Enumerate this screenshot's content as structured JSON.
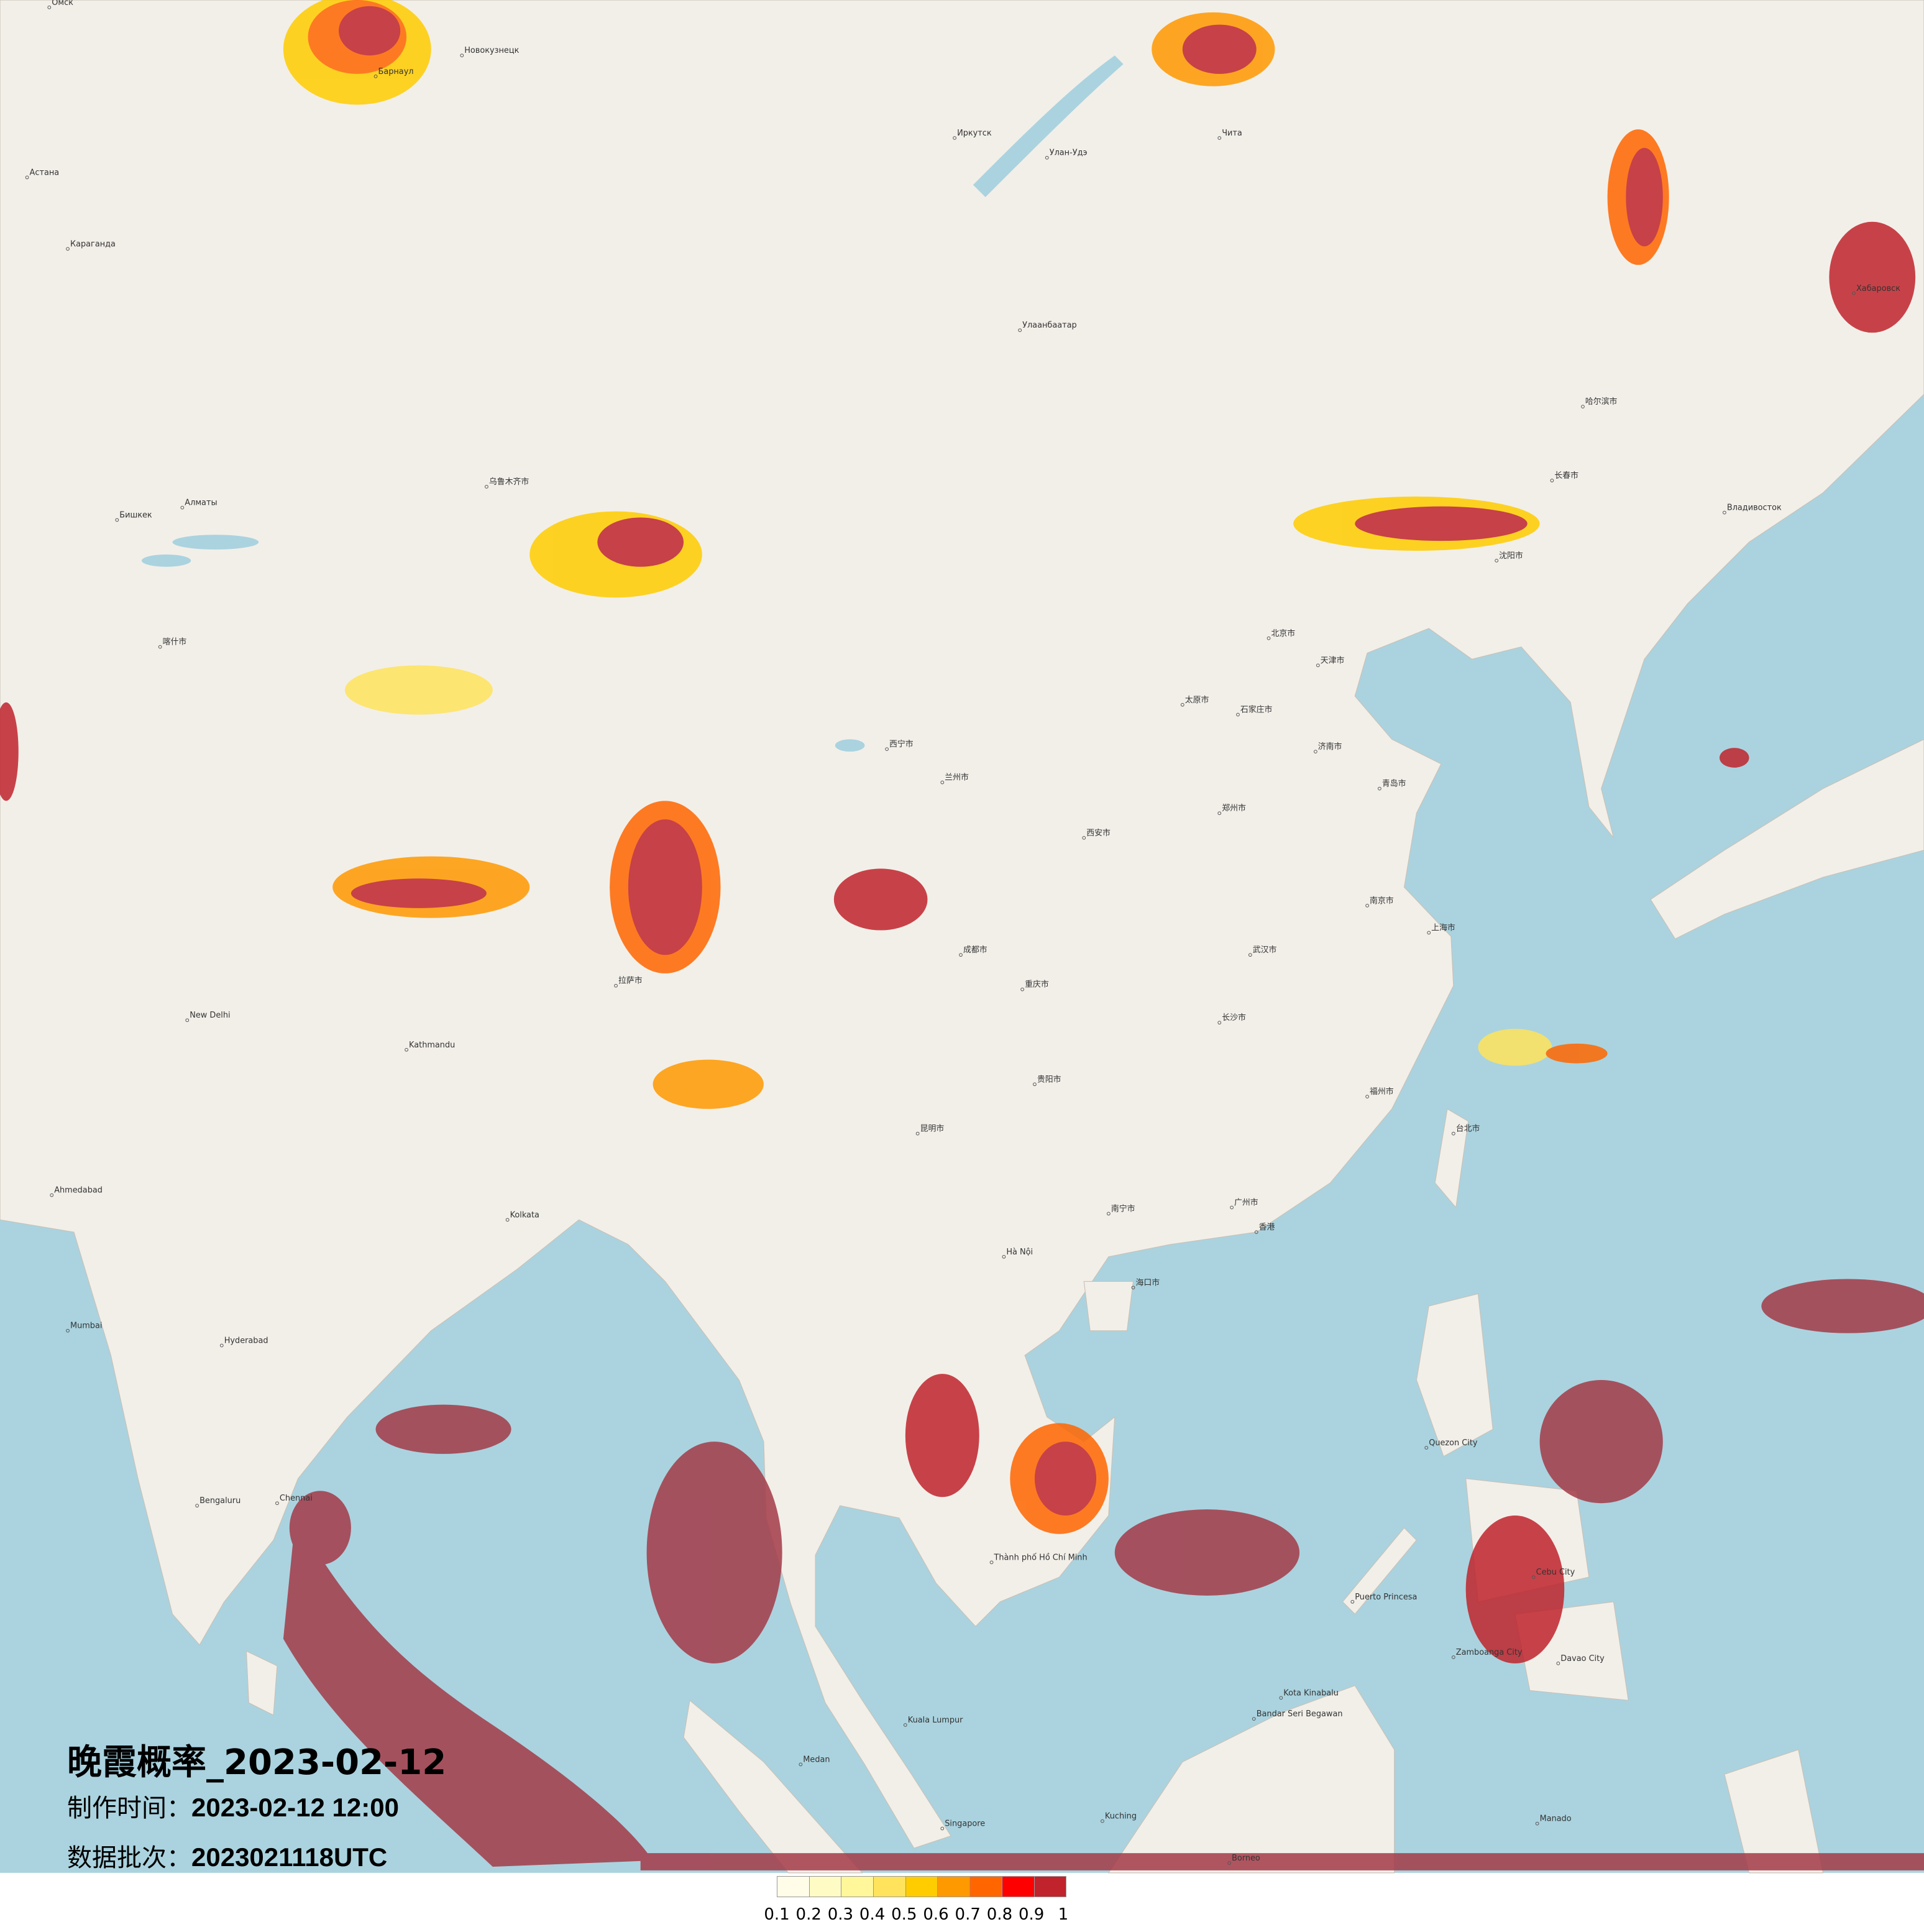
{
  "title": "晚霞概率_2023-02-12",
  "production_time_label": "制作时间：",
  "production_time": "2023-02-12 12:00",
  "data_batch_label": "数据批次：",
  "data_batch": "2023021118UTC",
  "legend": {
    "ticks": [
      "0.1",
      "0.2",
      "0.3",
      "0.4",
      "0.5",
      "0.6",
      "0.7",
      "0.8",
      "0.9",
      "1"
    ],
    "colors": [
      "#fffde8",
      "#fffbc4",
      "#fff799",
      "#ffe35c",
      "#ffcc00",
      "#ff9900",
      "#ff6600",
      "#ff0000",
      "#c0232c"
    ]
  },
  "map_colors": {
    "land": "#f2efe9",
    "sea": "#aad3df",
    "border": "#b9a9c9"
  },
  "cities": [
    {
      "name": "Омск",
      "p": [
        40,
        6
      ]
    },
    {
      "name": "Новокузнецк",
      "p": [
        375,
        45
      ]
    },
    {
      "name": "Барнаул",
      "p": [
        305,
        62
      ]
    },
    {
      "name": "Астана",
      "p": [
        22,
        144
      ]
    },
    {
      "name": "Караганда",
      "p": [
        55,
        202
      ]
    },
    {
      "name": "Иркутск",
      "p": [
        775,
        112
      ]
    },
    {
      "name": "Улан-Удэ",
      "p": [
        850,
        128
      ]
    },
    {
      "name": "Чита",
      "p": [
        990,
        112
      ]
    },
    {
      "name": "Улаанбаатар",
      "p": [
        828,
        268
      ]
    },
    {
      "name": "Хабаровск",
      "p": [
        1505,
        238
      ]
    },
    {
      "name": "Владивосток",
      "p": [
        1400,
        416
      ]
    },
    {
      "name": "Алматы",
      "p": [
        148,
        412
      ]
    },
    {
      "name": "Бишкек",
      "p": [
        95,
        422
      ]
    },
    {
      "name": "哈尔滨市",
      "p": [
        1285,
        330
      ]
    },
    {
      "name": "长春市",
      "p": [
        1260,
        390
      ]
    },
    {
      "name": "沈阳市",
      "p": [
        1215,
        455
      ]
    },
    {
      "name": "北京市",
      "p": [
        1030,
        518
      ]
    },
    {
      "name": "天津市",
      "p": [
        1070,
        540
      ]
    },
    {
      "name": "石家庄市",
      "p": [
        1005,
        580
      ]
    },
    {
      "name": "太原市",
      "p": [
        960,
        572
      ]
    },
    {
      "name": "济南市",
      "p": [
        1068,
        610
      ]
    },
    {
      "name": "青岛市",
      "p": [
        1120,
        640
      ]
    },
    {
      "name": "郑州市",
      "p": [
        990,
        660
      ]
    },
    {
      "name": "西安市",
      "p": [
        880,
        680
      ]
    },
    {
      "name": "兰州市",
      "p": [
        765,
        635
      ]
    },
    {
      "name": "西宁市",
      "p": [
        720,
        608
      ]
    },
    {
      "name": "南京市",
      "p": [
        1110,
        735
      ]
    },
    {
      "name": "上海市",
      "p": [
        1160,
        757
      ]
    },
    {
      "name": "武汉市",
      "p": [
        1015,
        775
      ]
    },
    {
      "name": "成都市",
      "p": [
        780,
        775
      ]
    },
    {
      "name": "重庆市",
      "p": [
        830,
        803
      ]
    },
    {
      "name": "长沙市",
      "p": [
        990,
        830
      ]
    },
    {
      "name": "贵阳市",
      "p": [
        840,
        880
      ]
    },
    {
      "name": "昆明市",
      "p": [
        745,
        920
      ]
    },
    {
      "name": "福州市",
      "p": [
        1110,
        890
      ]
    },
    {
      "name": "台北市",
      "p": [
        1180,
        920
      ]
    },
    {
      "name": "广州市",
      "p": [
        1000,
        980
      ]
    },
    {
      "name": "香港",
      "p": [
        1020,
        1000
      ]
    },
    {
      "name": "南宁市",
      "p": [
        900,
        985
      ]
    },
    {
      "name": "海口市",
      "p": [
        920,
        1045
      ]
    },
    {
      "name": "拉萨市",
      "p": [
        500,
        800
      ]
    },
    {
      "name": "乌鲁木齐市",
      "p": [
        395,
        395
      ]
    },
    {
      "name": "喀什市",
      "p": [
        130,
        525
      ]
    },
    {
      "name": "New Delhi",
      "p": [
        152,
        828
      ]
    },
    {
      "name": "Kathmandu",
      "p": [
        330,
        852
      ]
    },
    {
      "name": "Ahmedabad",
      "p": [
        42,
        970
      ]
    },
    {
      "name": "Kolkata",
      "p": [
        412,
        990
      ]
    },
    {
      "name": "Mumbai",
      "p": [
        55,
        1080
      ]
    },
    {
      "name": "Hyderabad",
      "p": [
        180,
        1092
      ]
    },
    {
      "name": "Bengaluru",
      "p": [
        160,
        1222
      ]
    },
    {
      "name": "Chennai",
      "p": [
        225,
        1220
      ]
    },
    {
      "name": "Hà Nội",
      "p": [
        815,
        1020
      ]
    },
    {
      "name": "Thành phố Hồ Chí Minh",
      "p": [
        805,
        1268
      ]
    },
    {
      "name": "Kuala Lumpur",
      "p": [
        735,
        1400
      ]
    },
    {
      "name": "Singapore",
      "p": [
        765,
        1484
      ]
    },
    {
      "name": "Medan",
      "p": [
        650,
        1432
      ]
    },
    {
      "name": "Quezon City",
      "p": [
        1158,
        1175
      ]
    },
    {
      "name": "Cebu City",
      "p": [
        1245,
        1280
      ]
    },
    {
      "name": "Davao City",
      "p": [
        1265,
        1350
      ]
    },
    {
      "name": "Zamboanga City",
      "p": [
        1180,
        1345
      ]
    },
    {
      "name": "Puerto Princesa",
      "p": [
        1098,
        1300
      ]
    },
    {
      "name": "Kota Kinabalu",
      "p": [
        1040,
        1378
      ]
    },
    {
      "name": "Bandar Seri Begawan",
      "p": [
        1018,
        1395
      ]
    },
    {
      "name": "Kuching",
      "p": [
        895,
        1478
      ]
    },
    {
      "name": "Manado",
      "p": [
        1248,
        1480
      ]
    },
    {
      "name": "Borneo",
      "p": [
        998,
        1512
      ]
    }
  ]
}
